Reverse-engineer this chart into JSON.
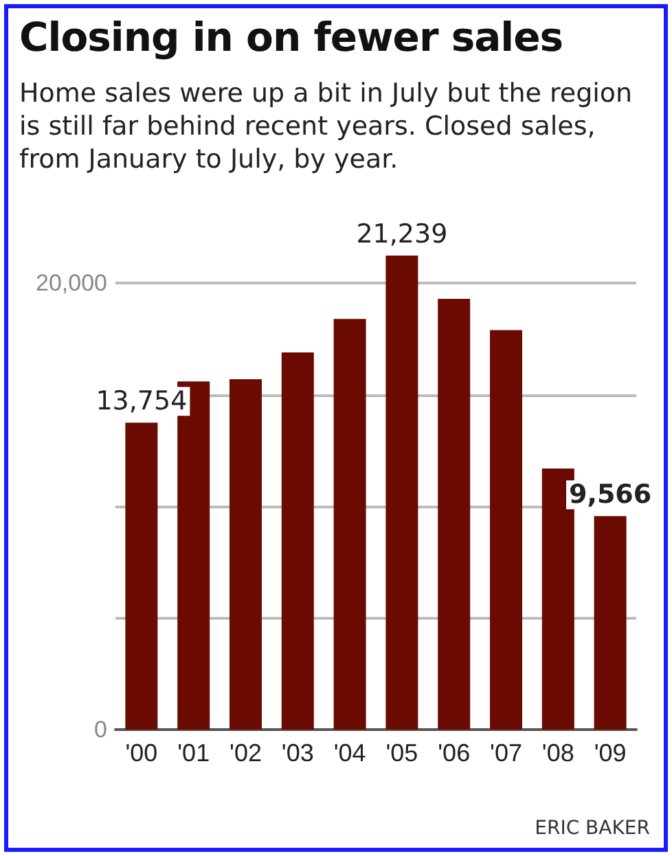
{
  "chart_data": {
    "type": "bar",
    "title": "Closing in on fewer sales",
    "subtitle": "Home sales were up a bit in July but the region is still far behind recent years.  Closed sales, from January to July, by year.",
    "categories": [
      "'00",
      "'01",
      "'02",
      "'03",
      "'04",
      "'05",
      "'06",
      "'07",
      "'08",
      "'09"
    ],
    "values": [
      13754,
      15600,
      15700,
      16900,
      18400,
      21239,
      19300,
      17900,
      11700,
      9566
    ],
    "value_labels": [
      "13,754",
      null,
      null,
      null,
      null,
      "21,239",
      null,
      null,
      null,
      "9,566"
    ],
    "color": "#6b0a00",
    "yticks": [
      0,
      {
        "value": 5000,
        "label": null
      },
      {
        "value": 10000,
        "label": null
      },
      {
        "value": 15000,
        "label": null
      },
      {
        "value": 20000,
        "label": "20,000"
      }
    ],
    "ylim": [
      0,
      21239
    ],
    "grid": "y",
    "annotations": [
      "ERIC BAKER"
    ]
  }
}
